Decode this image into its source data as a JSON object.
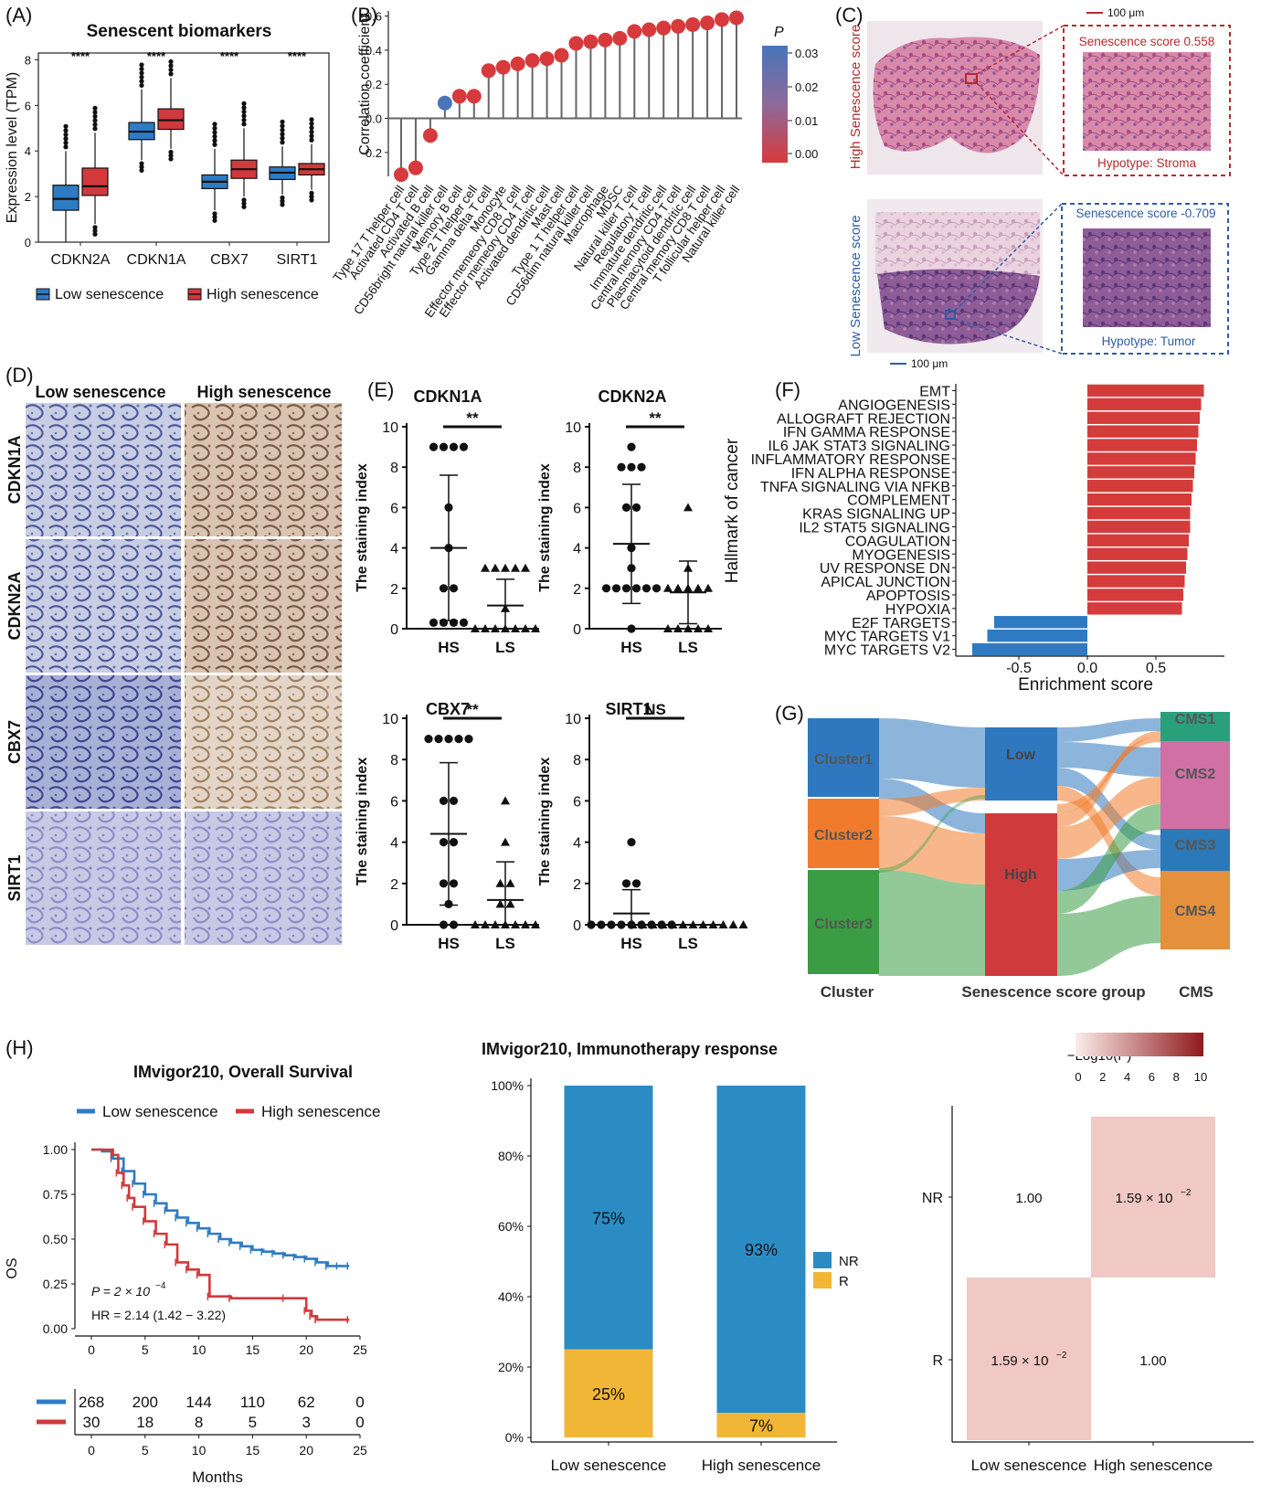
{
  "panels": {
    "A": {
      "label": "(A)",
      "title": "Senescent biomarkers",
      "ylabel": "Expression level (TPM)",
      "sig": "****",
      "legend": [
        "Low senescence",
        "High senescence"
      ]
    },
    "B": {
      "label": "(B)",
      "ylabel": "Correlation coefficient",
      "legend_title": "P"
    },
    "C": {
      "label": "(C)",
      "scalebar": "100 μm",
      "high_label": "High Senescence score",
      "low_label": "Low Senescence score",
      "high_score": "Senescence score 0.558",
      "high_type": "Hypotype: Stroma",
      "low_score": "Senescence score -0.709",
      "low_type": "Hypotype: Tumor"
    },
    "D": {
      "label": "(D)",
      "col_low": "Low senescence",
      "col_high": "High senescence",
      "rows": [
        "CDKN1A",
        "CDKN2A",
        "CBX7",
        "SIRT1"
      ]
    },
    "E": {
      "label": "(E)",
      "ylabel": "The staining index",
      "xcats": [
        "HS",
        "LS"
      ],
      "plots": [
        {
          "title": "CDKN1A",
          "sig": "**"
        },
        {
          "title": "CDKN2A",
          "sig": "**"
        },
        {
          "title": "CBX7",
          "sig": "**"
        },
        {
          "title": "SIRT1",
          "sig": "NS"
        }
      ]
    },
    "F": {
      "label": "(F)",
      "ylabel": "Hallmark of cancer",
      "xlabel": "Enrichment score"
    },
    "G": {
      "label": "(G)",
      "clusters": [
        "Cluster1",
        "Cluster2",
        "Cluster3"
      ],
      "groups": [
        "Low",
        "High"
      ],
      "cms": [
        "CMS1",
        "CMS2",
        "CMS3",
        "CMS4"
      ],
      "axis": [
        "Cluster",
        "Senescence score group",
        "CMS"
      ]
    },
    "H": {
      "label": "(H)",
      "km_title": "IMvigor210, Overall Survival",
      "km_legend": [
        "Low senescence",
        "High senescence"
      ],
      "km_ylabel": "OS",
      "km_xlabel": "Months",
      "km_p": "P = 2 × 10",
      "km_p_exp": "−4",
      "km_hr": "HR = 2.14 (1.42 − 3.22)",
      "bar_title": "IMvigor210, Immunotherapy response",
      "bar_legend": [
        "NR",
        "R"
      ],
      "heat_legend_title": "−Log10(P)",
      "heat_rows": [
        "NR",
        "R"
      ],
      "heat_cols": [
        "Low senescence",
        "High senescence"
      ],
      "heat_cells": [
        {
          "text": "1.00",
          "sup": ""
        },
        {
          "text": "1.59 × 10",
          "sup": "−2"
        },
        {
          "text": "1.59 × 10",
          "sup": "−2"
        },
        {
          "text": "1.00",
          "sup": ""
        }
      ]
    }
  },
  "colors": {
    "low": "#2f7bc3",
    "high": "#d2393c",
    "nr": "#2b8cc4",
    "r": "#f2b637",
    "heat": "#f0c8c4",
    "c1": "#2f78bf",
    "c2": "#f07b2c",
    "c3": "#3a9d43",
    "cms1": "#2aa07a",
    "cms2": "#d070a5",
    "cms3": "#2b79b8",
    "cms4": "#e4903c"
  },
  "chart_data": [
    {
      "id": "A",
      "type": "box",
      "title": "Senescent biomarkers",
      "ylabel": "Expression level (TPM)",
      "ylim": [
        0,
        8
      ],
      "yticks": [
        0,
        2,
        4,
        6,
        8
      ],
      "categories": [
        "CDKN2A",
        "CDKN1A",
        "CBX7",
        "SIRT1"
      ],
      "series": [
        {
          "name": "Low senescence",
          "boxes": [
            {
              "q1": 1.4,
              "med": 1.9,
              "q3": 2.5,
              "lo": 0.0,
              "hi": 4.0
            },
            {
              "q1": 4.5,
              "med": 4.85,
              "q3": 5.25,
              "lo": 3.6,
              "hi": 6.7
            },
            {
              "q1": 2.35,
              "med": 2.65,
              "q3": 2.95,
              "lo": 1.4,
              "hi": 4.1
            },
            {
              "q1": 2.75,
              "med": 3.05,
              "q3": 3.3,
              "lo": 2.1,
              "hi": 4.2
            }
          ]
        },
        {
          "name": "High senescence",
          "boxes": [
            {
              "q1": 2.05,
              "med": 2.45,
              "q3": 3.25,
              "lo": 0.8,
              "hi": 4.8
            },
            {
              "q1": 4.95,
              "med": 5.35,
              "q3": 5.85,
              "lo": 4.1,
              "hi": 7.2
            },
            {
              "q1": 2.8,
              "med": 3.2,
              "q3": 3.6,
              "lo": 2.0,
              "hi": 5.0
            },
            {
              "q1": 2.95,
              "med": 3.2,
              "q3": 3.45,
              "lo": 2.3,
              "hi": 4.3
            }
          ]
        }
      ]
    },
    {
      "id": "B",
      "type": "lollipop",
      "ylabel": "Correlation coefficient",
      "ylim": [
        -0.35,
        0.62
      ],
      "yticks": [
        -0.2,
        0.0,
        0.2,
        0.4,
        0.6
      ],
      "p_ticks": [
        0.03,
        0.02,
        0.01,
        0.0
      ],
      "categories": [
        "Type 17 T helper cell",
        "Activated CD4 T cell",
        "Activated B cell",
        "CD56bright natural killer cell",
        "Memory B cell",
        "Type 2 T helper cell",
        "Gamma delta T cell",
        "Monocyte",
        "Effector memeory CD8 T cell",
        "Effector memeory CD4 T cell",
        "Activated dendritic cell",
        "Mast cell",
        "Type 1 T helper cell",
        "CD56dim natural killer cell",
        "Macrophage",
        "MDSC",
        "Natural killer T cell",
        "Regulatory T cell",
        "Immature dendritic cell",
        "Central memory CD4 T cell",
        "Plasmacytoid dendritic cell",
        "Central memory CD8 T cell",
        "T follicular helper cell",
        "Natural killer cell"
      ],
      "values": [
        -0.33,
        -0.29,
        -0.1,
        0.09,
        0.13,
        0.13,
        0.28,
        0.3,
        0.32,
        0.34,
        0.35,
        0.37,
        0.44,
        0.45,
        0.46,
        0.47,
        0.51,
        0.52,
        0.53,
        0.54,
        0.55,
        0.56,
        0.58,
        0.59
      ],
      "p": [
        0,
        0,
        0,
        0.03,
        0,
        0,
        0,
        0,
        0,
        0,
        0,
        0,
        0,
        0,
        0,
        0,
        0,
        0,
        0,
        0,
        0,
        0,
        0,
        0
      ]
    },
    {
      "id": "E",
      "type": "scatter",
      "ylabel": "The staining index",
      "ylim": [
        0,
        10
      ],
      "yticks": [
        0,
        2,
        4,
        6,
        8,
        10
      ],
      "panels": [
        {
          "title": "CDKN1A",
          "HS": {
            "mean": 4.0,
            "sd": 3.6,
            "pts": [
              9,
              9,
              9,
              9,
              6,
              4,
              2,
              2,
              0.3,
              0.3,
              0.3,
              0.3
            ]
          },
          "LS": {
            "mean": 1.15,
            "sd": 1.3,
            "pts": [
              3,
              3,
              3,
              3,
              3,
              1,
              0,
              0,
              0,
              0,
              0,
              0,
              0
            ]
          }
        },
        {
          "title": "CDKN2A",
          "HS": {
            "mean": 4.2,
            "sd": 2.95,
            "pts": [
              9,
              8,
              8,
              8,
              6,
              6,
              4,
              3,
              2,
              2,
              2,
              2,
              2,
              2,
              0
            ]
          },
          "LS": {
            "mean": 1.8,
            "sd": 1.55,
            "pts": [
              6,
              3,
              2,
              2,
              2,
              2,
              2,
              0,
              0,
              0,
              0,
              0
            ]
          }
        },
        {
          "title": "CBX7",
          "HS": {
            "mean": 4.4,
            "sd": 3.45,
            "pts": [
              9,
              9,
              9,
              9,
              9,
              6,
              6,
              4,
              4,
              2,
              2,
              1,
              0,
              0
            ]
          },
          "LS": {
            "mean": 1.2,
            "sd": 1.85,
            "pts": [
              6,
              4,
              2,
              2,
              1,
              1,
              0,
              0,
              0,
              0,
              0,
              0,
              0
            ]
          }
        },
        {
          "title": "SIRT1",
          "HS": {
            "mean": 0.55,
            "sd": 1.15,
            "pts": [
              4,
              2,
              2,
              0,
              0,
              0,
              0,
              0,
              0,
              0,
              0,
              0
            ]
          },
          "LS": {
            "mean": 0.0,
            "sd": 0.0,
            "pts": [
              0,
              0,
              0,
              0,
              0,
              0,
              0,
              0,
              0,
              0,
              0,
              0
            ]
          }
        }
      ]
    },
    {
      "id": "F",
      "type": "bar",
      "orientation": "horizontal",
      "xlabel": "Enrichment score",
      "ylabel": "Hallmark of cancer",
      "xticks": [
        -0.5,
        0.0,
        0.5
      ],
      "xlim": [
        -0.87,
        0.95
      ],
      "categories": [
        "EMT",
        "ANGIOGENESIS",
        "ALLOGRAFT REJECTION",
        "IFN GAMMA RESPONSE",
        "IL6 JAK STAT3 SIGNALING",
        "INFLAMMATORY RESPONSE",
        "IFN ALPHA RESPONSE",
        "TNFA SIGNALING VIA NFKB",
        "COMPLEMENT",
        "KRAS SIGNALING UP",
        "IL2 STAT5 SIGNALING",
        "COAGULATION",
        "MYOGENESIS",
        "UV RESPONSE DN",
        "APICAL JUNCTION",
        "APOPTOSIS",
        "HYPOXIA",
        "E2F TARGETS",
        "MYC TARGETS V1",
        "MYC TARGETS V2"
      ],
      "values": [
        0.85,
        0.83,
        0.82,
        0.81,
        0.8,
        0.79,
        0.78,
        0.77,
        0.76,
        0.75,
        0.75,
        0.74,
        0.73,
        0.72,
        0.71,
        0.7,
        0.69,
        -0.68,
        -0.73,
        -0.84
      ]
    },
    {
      "id": "G",
      "type": "sankey",
      "columns": [
        "Cluster",
        "Senescence score group",
        "CMS"
      ],
      "nodes": {
        "Cluster": [
          "Cluster1",
          "Cluster2",
          "Cluster3"
        ],
        "Senescence score group": [
          "Low",
          "High"
        ],
        "CMS": [
          "CMS1",
          "CMS2",
          "CMS3",
          "CMS4"
        ]
      }
    },
    {
      "id": "H1",
      "type": "line",
      "title": "IMvigor210, Overall Survival",
      "xlabel": "Months",
      "ylabel": "OS",
      "xticks": [
        0,
        5,
        10,
        15,
        20,
        25
      ],
      "yticks": [
        0.0,
        0.25,
        0.5,
        0.75,
        1.0
      ],
      "series": [
        {
          "name": "Low senescence",
          "x": [
            0,
            1,
            2,
            3,
            4,
            5,
            6,
            7,
            8,
            9,
            10,
            11,
            12,
            13,
            14,
            15,
            16,
            17,
            18,
            19,
            20,
            21,
            22,
            23,
            24
          ],
          "y": [
            1.0,
            0.99,
            0.95,
            0.88,
            0.81,
            0.75,
            0.7,
            0.66,
            0.62,
            0.59,
            0.56,
            0.53,
            0.5,
            0.48,
            0.46,
            0.44,
            0.43,
            0.42,
            0.41,
            0.4,
            0.39,
            0.37,
            0.35,
            0.35,
            0.35
          ]
        },
        {
          "name": "High senescence",
          "x": [
            0,
            1,
            2,
            2.5,
            3,
            3.5,
            4,
            5,
            6,
            7,
            8,
            9,
            10,
            11,
            13,
            18,
            20,
            20.5,
            21,
            24
          ],
          "y": [
            1.0,
            1.0,
            0.97,
            0.87,
            0.8,
            0.73,
            0.68,
            0.6,
            0.53,
            0.47,
            0.37,
            0.33,
            0.3,
            0.18,
            0.17,
            0.17,
            0.1,
            0.07,
            0.05,
            0.05
          ]
        }
      ],
      "risk_table": {
        "x": [
          0,
          5,
          10,
          15,
          20,
          25
        ],
        "Low senescence": [
          268,
          200,
          144,
          110,
          62,
          0
        ],
        "High senescence": [
          30,
          18,
          8,
          5,
          3,
          0
        ]
      }
    },
    {
      "id": "H2",
      "type": "bar",
      "stacked": true,
      "title": "IMvigor210, Immunotherapy response",
      "categories": [
        "Low senescence",
        "High senescence"
      ],
      "yticks": [
        "0%",
        "20%",
        "40%",
        "60%",
        "80%",
        "100%"
      ],
      "series": [
        {
          "name": "NR",
          "values": [
            75,
            93
          ],
          "labels": [
            "75%",
            "93%"
          ]
        },
        {
          "name": "R",
          "values": [
            25,
            7
          ],
          "labels": [
            "25%",
            "7%"
          ]
        }
      ]
    },
    {
      "id": "H3",
      "type": "heatmap",
      "legend_ticks": [
        0,
        2,
        4,
        6,
        8,
        10
      ],
      "rows": [
        "NR",
        "R"
      ],
      "cols": [
        "Low senescence",
        "High senescence"
      ],
      "p_values": [
        [
          1.0,
          0.0159
        ],
        [
          0.0159,
          1.0
        ]
      ]
    }
  ]
}
